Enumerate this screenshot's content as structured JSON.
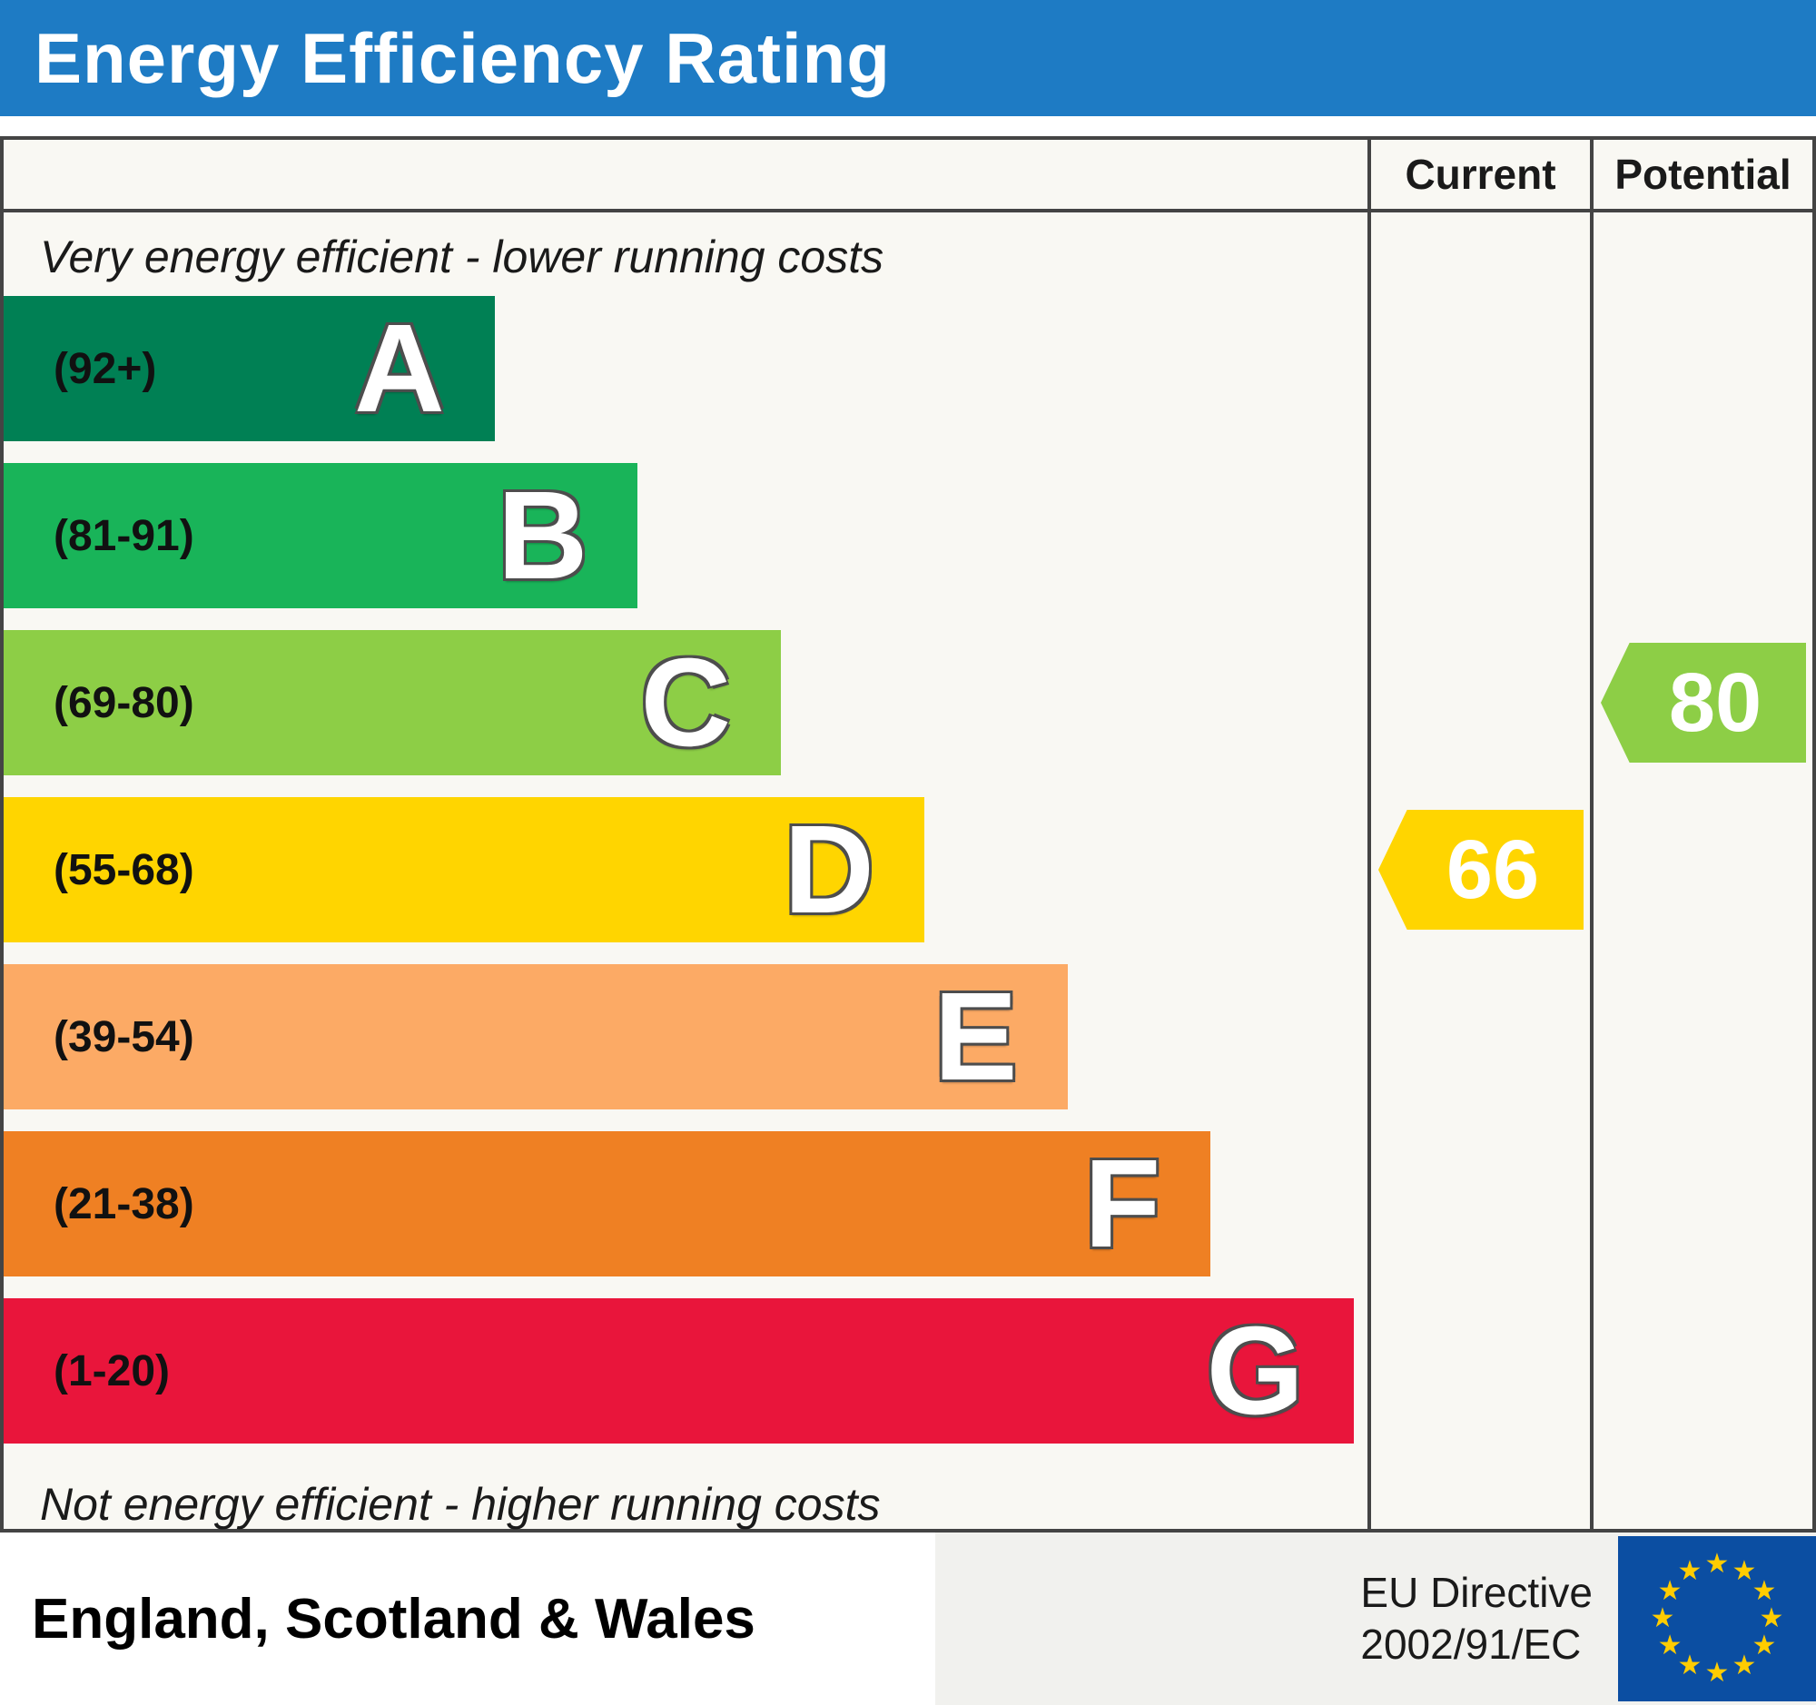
{
  "title": "Energy Efficiency Rating",
  "header": {
    "current": "Current",
    "potential": "Potential"
  },
  "notes": {
    "top": "Very energy efficient - lower running costs",
    "bottom": "Not energy efficient - higher running costs"
  },
  "chart_data": {
    "type": "bar",
    "title": "Energy Efficiency Rating",
    "top_label": "Very energy efficient - lower running costs",
    "bottom_label": "Not energy efficient - higher running costs",
    "columns": [
      "Current",
      "Potential"
    ],
    "bands": [
      {
        "letter": "A",
        "range": "(92+)",
        "color": "#008054",
        "width_pct": 36
      },
      {
        "letter": "B",
        "range": "(81-91)",
        "color": "#19b459",
        "width_pct": 46.5
      },
      {
        "letter": "C",
        "range": "(69-80)",
        "color": "#8dce46",
        "width_pct": 57
      },
      {
        "letter": "D",
        "range": "(55-68)",
        "color": "#ffd500",
        "width_pct": 67.5
      },
      {
        "letter": "E",
        "range": "(39-54)",
        "color": "#fcaa65",
        "width_pct": 78
      },
      {
        "letter": "F",
        "range": "(21-38)",
        "color": "#ef8023",
        "width_pct": 88.5
      },
      {
        "letter": "G",
        "range": "(1-20)",
        "color": "#e9153b",
        "width_pct": 99
      }
    ],
    "current": {
      "label": "Current",
      "value": 66,
      "band": "D",
      "color": "#ffd500"
    },
    "potential": {
      "label": "Potential",
      "value": 80,
      "band": "C",
      "color": "#8dce46"
    }
  },
  "footer": {
    "region": "England, Scotland & Wales",
    "directive_line1": "EU Directive",
    "directive_line2": "2002/91/EC",
    "eu_flag": {
      "icon": "eu-flag-icon",
      "star_icon": "★",
      "stars": 12,
      "blue": "#0b4ea2",
      "gold": "#ffcc00"
    }
  }
}
